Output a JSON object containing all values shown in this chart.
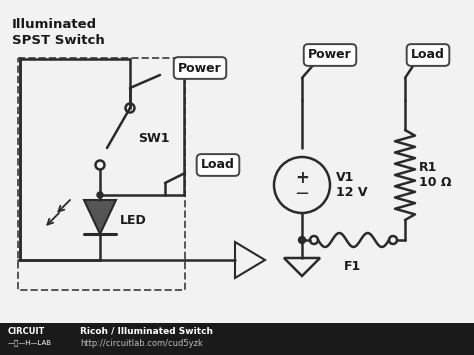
{
  "bg_color": "#f2f2f2",
  "footer_bg": "#1a1a1a",
  "footer_text1": "Ricoh / Illuminated Switch",
  "footer_text2": "http://circuitlab.com/cud5yzk",
  "title": "Illuminated\nSPST Switch",
  "label_power1": "Power",
  "label_load1": "Load",
  "label_sw1": "SW1",
  "label_led": "LED",
  "label_power2": "Power",
  "label_load2": "Load",
  "label_v1": "V1\n12 V",
  "label_r1": "R1\n10 Ω",
  "label_f1": "F1",
  "dark": "#2a2a2a",
  "lw": 1.8
}
